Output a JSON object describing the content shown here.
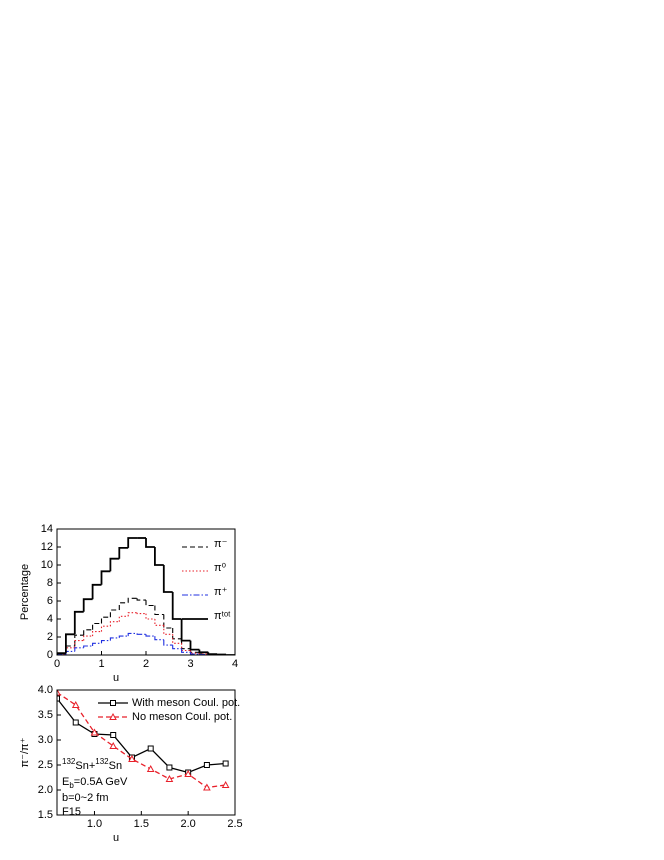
{
  "chart_data": [
    {
      "type": "histogram",
      "ylabel": "Percentage",
      "xlabel": "u",
      "bins": [
        0,
        0.2,
        0.4,
        0.6,
        0.8,
        1.0,
        1.2,
        1.4,
        1.6,
        1.8,
        2.0,
        2.2,
        2.4,
        2.6,
        2.8,
        3.0,
        3.2,
        3.4,
        3.6,
        3.8,
        4.0
      ],
      "xlim": [
        0,
        4
      ],
      "xticks": [
        0,
        1,
        2,
        3,
        4
      ],
      "ylim": [
        0,
        14
      ],
      "yticks": [
        0,
        2,
        4,
        6,
        8,
        10,
        12,
        14
      ],
      "legend": "upper right",
      "series": [
        {
          "name": "π⁻",
          "color": "#000000",
          "dash": "dash",
          "values": [
            0.1,
            1.0,
            2.2,
            2.8,
            3.5,
            4.2,
            5.0,
            5.8,
            6.3,
            6.1,
            5.5,
            4.5,
            3.0,
            1.8,
            0.7,
            0.3,
            0.1,
            0.05,
            0,
            0
          ]
        },
        {
          "name": "π⁰",
          "color": "#e8202a",
          "dash": "dot",
          "values": [
            0.1,
            0.8,
            1.6,
            2.1,
            2.6,
            3.2,
            3.7,
            4.3,
            4.7,
            4.6,
            4.0,
            3.3,
            2.3,
            1.3,
            0.5,
            0.2,
            0.1,
            0,
            0,
            0
          ]
        },
        {
          "name": "π⁺",
          "color": "#2030e0",
          "dash": "dashdot",
          "values": [
            0.05,
            0.4,
            0.8,
            1.0,
            1.3,
            1.6,
            1.9,
            2.1,
            2.4,
            2.3,
            2.1,
            1.7,
            1.1,
            0.7,
            0.3,
            0.1,
            0.05,
            0,
            0,
            0
          ]
        },
        {
          "name": "πᵗᵒᵗ",
          "color": "#000000",
          "dash": "solid",
          "values": [
            0.2,
            2.3,
            4.8,
            6.2,
            7.8,
            9.3,
            10.7,
            11.9,
            13.0,
            13.0,
            12.0,
            10.0,
            7.0,
            4.0,
            1.6,
            0.6,
            0.3,
            0.1,
            0.05,
            0
          ]
        }
      ]
    },
    {
      "type": "line",
      "ylabel": "π⁻/π⁺",
      "xlabel": "u",
      "x": [
        0.6,
        0.8,
        1.0,
        1.2,
        1.4,
        1.6,
        1.8,
        2.0,
        2.2,
        2.4
      ],
      "xlim": [
        0.6,
        2.5
      ],
      "xticks": [
        {
          "value": 1.0,
          "label": "1.0"
        },
        {
          "value": 1.5,
          "label": "1.5"
        },
        {
          "value": 2.0,
          "label": "2.0"
        },
        {
          "value": 2.5,
          "label": "2.5"
        }
      ],
      "ylim": [
        1.5,
        4.0
      ],
      "yticks": [
        {
          "value": 1.5,
          "label": "1.5"
        },
        {
          "value": 2.0,
          "label": "2.0"
        },
        {
          "value": 2.5,
          "label": "2.5"
        },
        {
          "value": 3.0,
          "label": "3.0"
        },
        {
          "value": 3.5,
          "label": "3.5"
        },
        {
          "value": 4.0,
          "label": "4.0"
        }
      ],
      "legend": "upper right",
      "series": [
        {
          "name": "With meson Coul. pot.",
          "color": "#000000",
          "dash": "solid",
          "marker": "square",
          "values": [
            3.83,
            3.35,
            3.12,
            3.1,
            2.65,
            2.83,
            2.45,
            2.35,
            2.5,
            2.53
          ]
        },
        {
          "name": "No meson Coul. pot.",
          "color": "#e8202a",
          "dash": "dash",
          "marker": "triangle",
          "values": [
            3.95,
            3.7,
            3.15,
            2.88,
            2.62,
            2.42,
            2.22,
            2.32,
            2.05,
            2.1
          ]
        }
      ],
      "annotation": {
        "reaction": [
          "132",
          "Sn+",
          "132",
          "Sn"
        ],
        "energy": [
          "E",
          "b",
          "=0.5A GeV"
        ],
        "impact": "b=0~2 fm",
        "model": "F15"
      }
    }
  ]
}
